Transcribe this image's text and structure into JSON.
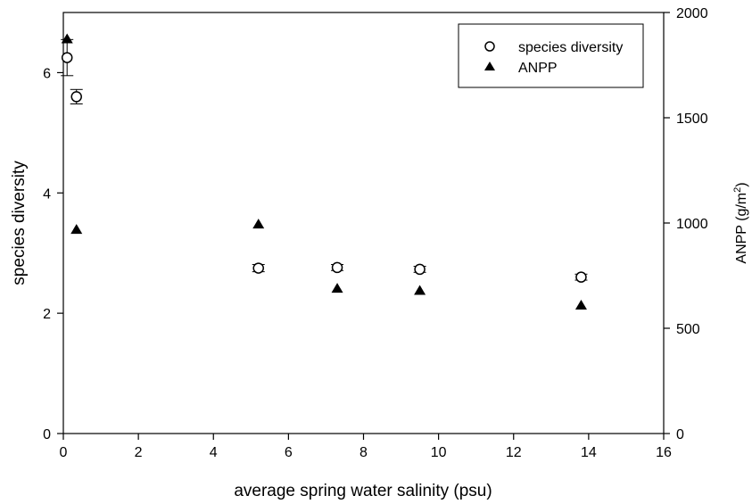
{
  "chart_data": {
    "type": "scatter",
    "xlabel": "average spring water salinity (psu)",
    "ylabel_left": "species diversity",
    "ylabel_right_main": "ANPP (g/m",
    "ylabel_right_sup": "2",
    "ylabel_right_tail": ")",
    "xlim": [
      0,
      16
    ],
    "ylim_left": [
      0,
      7
    ],
    "ylim_right": [
      0,
      2000
    ],
    "x_ticks": [
      "0",
      "2",
      "4",
      "6",
      "8",
      "10",
      "12",
      "14",
      "16"
    ],
    "y_left_ticks": [
      "0",
      "2",
      "4",
      "6"
    ],
    "y_right_ticks": [
      "0",
      "500",
      "1000",
      "1500",
      "2000"
    ],
    "grid": false,
    "legend_position": "top-right",
    "series": [
      {
        "name": "species diversity",
        "axis": "left",
        "marker": "open-circle",
        "color": "#000000",
        "x": [
          0.1,
          0.35,
          5.2,
          7.3,
          9.5,
          13.8
        ],
        "y": [
          6.25,
          5.6,
          2.75,
          2.76,
          2.73,
          2.6
        ],
        "error": [
          0.3,
          0.12,
          0.06,
          0.05,
          0.05,
          0.05
        ]
      },
      {
        "name": "ANPP",
        "axis": "right",
        "marker": "filled-triangle",
        "color": "#000000",
        "x": [
          0.1,
          0.35,
          5.2,
          7.3,
          9.5,
          13.8
        ],
        "y": [
          1875,
          970,
          995,
          690,
          680,
          610
        ]
      }
    ]
  }
}
